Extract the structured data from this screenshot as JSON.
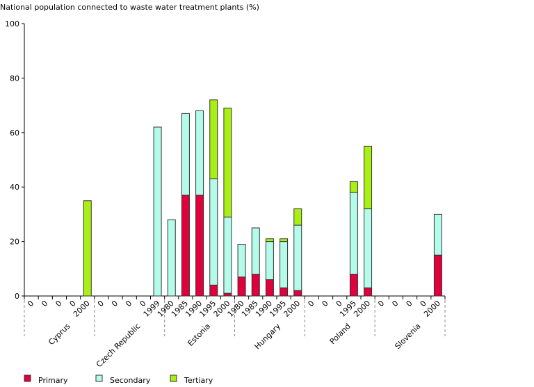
{
  "chart_data": {
    "type": "bar",
    "stacked": true,
    "title": "National population connected to waste water treatment plants (%)",
    "ylim": [
      0,
      100
    ],
    "yticks": [
      0,
      20,
      40,
      60,
      80,
      100
    ],
    "grid": false,
    "legend_placement": "bottom",
    "colors": {
      "Primary": "#e0003c",
      "Secondary": "#b4fbe9",
      "Tertiary": "#a9ef14"
    },
    "groups": [
      {
        "name": "Cyprus",
        "categories": [
          "0",
          "0",
          "0",
          "0",
          "2000"
        ]
      },
      {
        "name": "Czech Republic",
        "categories": [
          "0",
          "0",
          "0",
          "0",
          "1999"
        ]
      },
      {
        "name": "Estonia",
        "categories": [
          "1980",
          "1985",
          "1990",
          "1995",
          "2000"
        ]
      },
      {
        "name": "Hungary",
        "categories": [
          "1980",
          "1985",
          "1990",
          "1995",
          "2000"
        ]
      },
      {
        "name": "Poland",
        "categories": [
          "0",
          "0",
          "0",
          "1995",
          "2000"
        ]
      },
      {
        "name": "Slovenia",
        "categories": [
          "0",
          "0",
          "0",
          "0",
          "2000"
        ]
      }
    ],
    "series": [
      {
        "name": "Primary",
        "values": [
          0,
          0,
          0,
          0,
          0,
          0,
          0,
          0,
          0,
          0,
          0,
          37,
          37,
          4,
          1,
          7,
          8,
          6,
          3,
          2,
          0,
          0,
          0,
          8,
          3,
          0,
          0,
          0,
          0,
          15
        ]
      },
      {
        "name": "Secondary",
        "values": [
          0,
          0,
          0,
          0,
          0,
          0,
          0,
          0,
          0,
          62,
          28,
          30,
          31,
          39,
          28,
          12,
          17,
          14,
          17,
          24,
          0,
          0,
          0,
          30,
          29,
          0,
          0,
          0,
          0,
          15
        ]
      },
      {
        "name": "Tertiary",
        "values": [
          0,
          0,
          0,
          0,
          35,
          0,
          0,
          0,
          0,
          0,
          0,
          0,
          0,
          29,
          40,
          0,
          0,
          1,
          1,
          6,
          0,
          0,
          0,
          4,
          23,
          0,
          0,
          0,
          0,
          0
        ]
      }
    ]
  }
}
